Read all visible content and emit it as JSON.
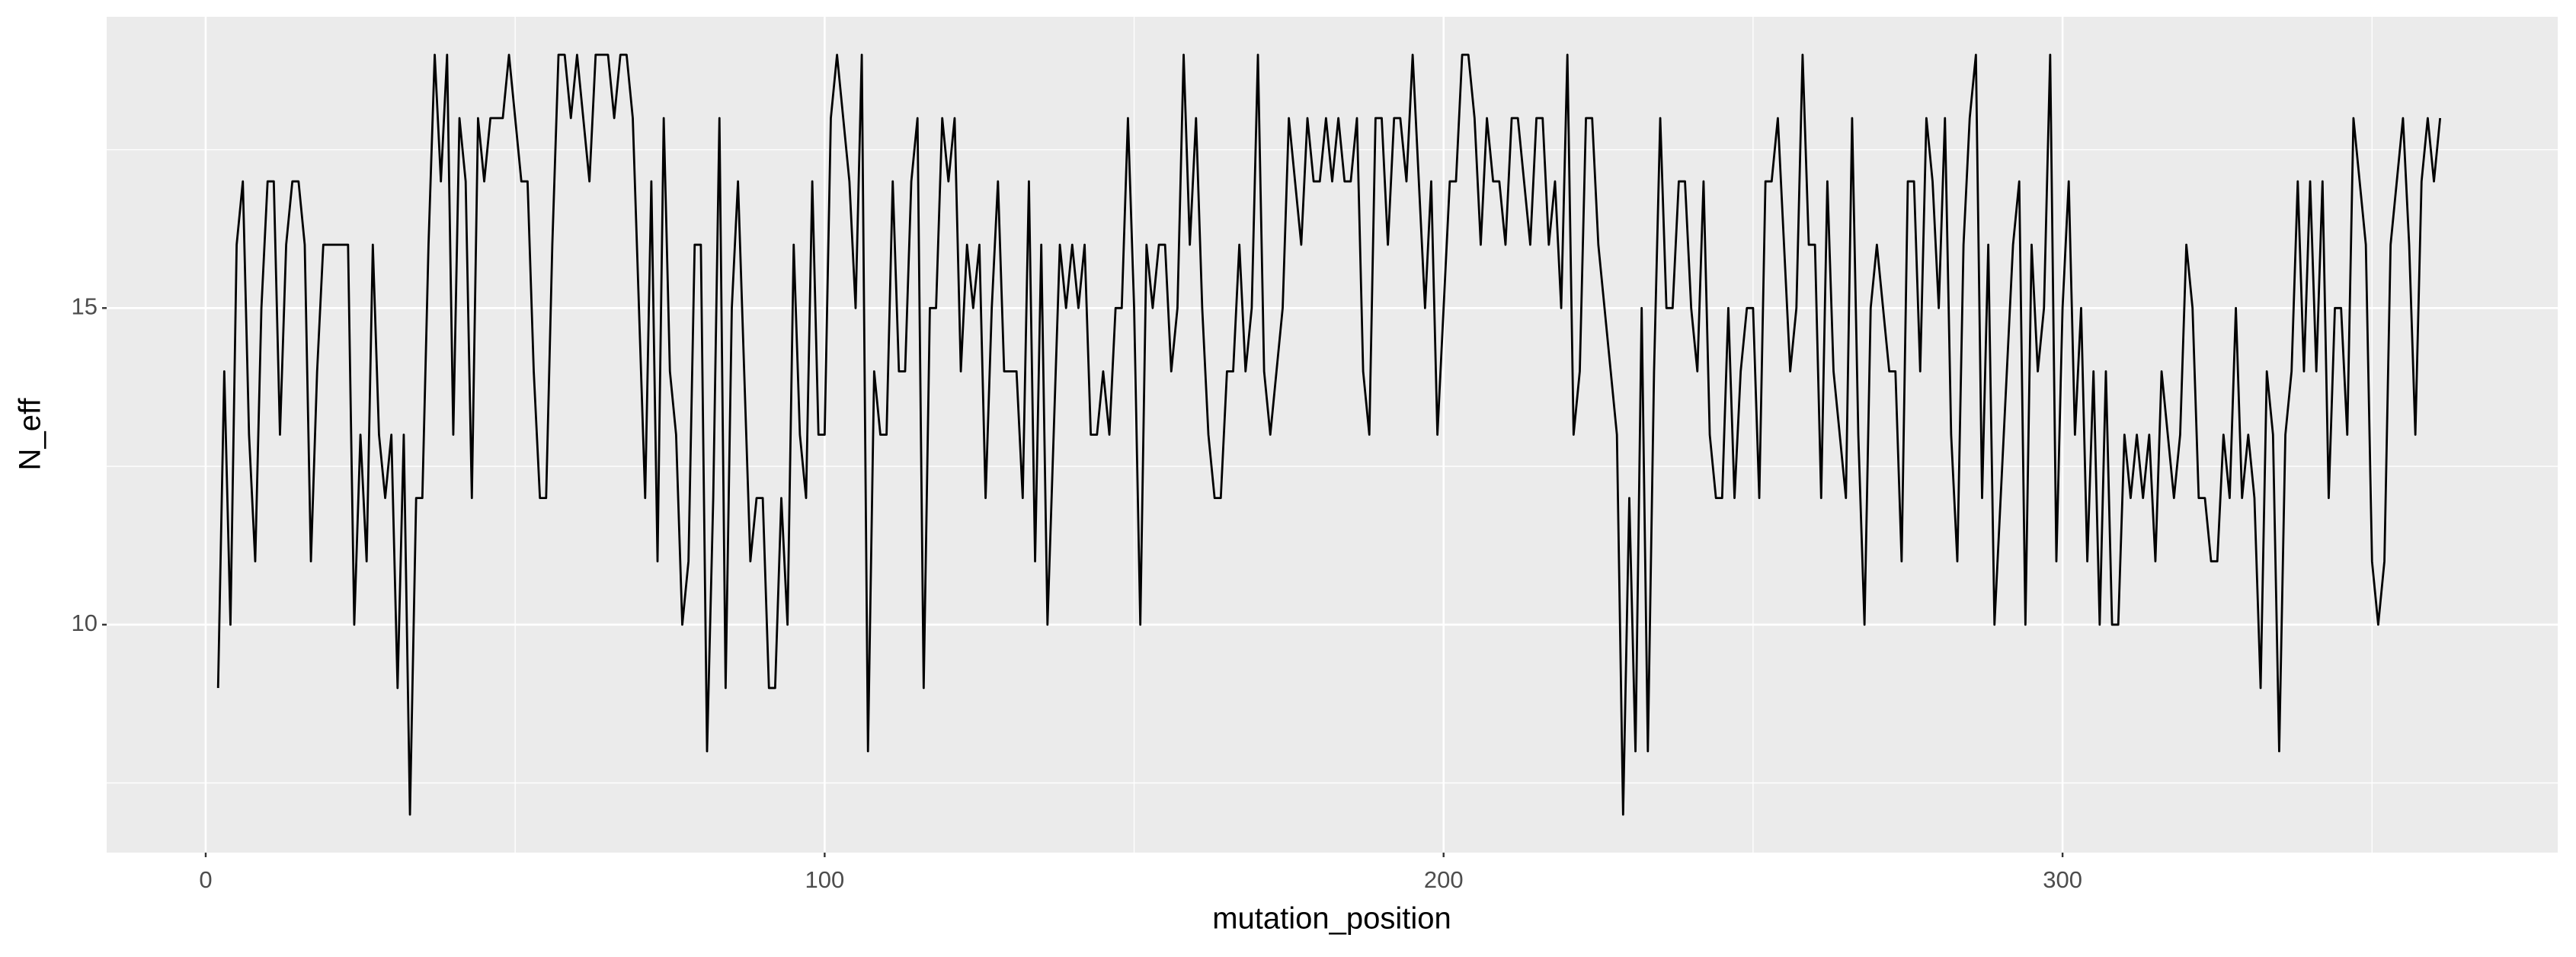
{
  "chart_data": {
    "type": "line",
    "x_label": "mutation_position",
    "y_label": "N_eff",
    "color": "#000000",
    "xlim": [
      -16,
      380
    ],
    "ylim": [
      6.4,
      19.6
    ],
    "xticks": [
      0,
      100,
      200,
      300
    ],
    "yticks": [
      10,
      15
    ],
    "x_minor_ticks": [
      50,
      150,
      250,
      350
    ],
    "y_minor_ticks": [
      7.5,
      12.5,
      17.5
    ],
    "grid": true,
    "panel_color": "#ebebeb",
    "x": [
      2,
      3,
      4,
      5,
      6,
      7,
      8,
      9,
      10,
      11,
      12,
      13,
      14,
      15,
      16,
      17,
      18,
      19,
      20,
      21,
      22,
      23,
      24,
      25,
      26,
      27,
      28,
      29,
      30,
      31,
      32,
      33,
      34,
      35,
      36,
      37,
      38,
      39,
      40,
      41,
      42,
      43,
      44,
      45,
      46,
      47,
      48,
      49,
      50,
      51,
      52,
      53,
      54,
      55,
      56,
      57,
      58,
      59,
      60,
      61,
      62,
      63,
      64,
      65,
      66,
      67,
      68,
      69,
      70,
      71,
      72,
      73,
      74,
      75,
      76,
      77,
      78,
      79,
      80,
      81,
      82,
      83,
      84,
      85,
      86,
      87,
      88,
      89,
      90,
      91,
      92,
      93,
      94,
      95,
      96,
      97,
      98,
      99,
      100,
      101,
      102,
      103,
      104,
      105,
      106,
      107,
      108,
      109,
      110,
      111,
      112,
      113,
      114,
      115,
      116,
      117,
      118,
      119,
      120,
      121,
      122,
      123,
      124,
      125,
      126,
      127,
      128,
      129,
      130,
      131,
      132,
      133,
      134,
      135,
      136,
      137,
      138,
      139,
      140,
      141,
      142,
      143,
      144,
      145,
      146,
      147,
      148,
      149,
      150,
      151,
      152,
      153,
      154,
      155,
      156,
      157,
      158,
      159,
      160,
      161,
      162,
      163,
      164,
      165,
      166,
      167,
      168,
      169,
      170,
      171,
      172,
      173,
      174,
      175,
      176,
      177,
      178,
      179,
      180,
      181,
      182,
      183,
      184,
      185,
      186,
      187,
      188,
      189,
      190,
      191,
      192,
      193,
      194,
      195,
      196,
      197,
      198,
      199,
      200,
      201,
      202,
      203,
      204,
      205,
      206,
      207,
      208,
      209,
      210,
      211,
      212,
      213,
      214,
      215,
      216,
      217,
      218,
      219,
      220,
      221,
      222,
      223,
      224,
      225,
      226,
      227,
      228,
      229,
      230,
      231,
      232,
      233,
      234,
      235,
      236,
      237,
      238,
      239,
      240,
      241,
      242,
      243,
      244,
      245,
      246,
      247,
      248,
      249,
      250,
      251,
      252,
      253,
      254,
      255,
      256,
      257,
      258,
      259,
      260,
      261,
      262,
      263,
      264,
      265,
      266,
      267,
      268,
      269,
      270,
      271,
      272,
      273,
      274,
      275,
      276,
      277,
      278,
      279,
      280,
      281,
      282,
      283,
      284,
      285,
      286,
      287,
      288,
      289,
      290,
      291,
      292,
      293,
      294,
      295,
      296,
      297,
      298,
      299,
      300,
      301,
      302,
      303,
      304,
      305,
      306,
      307,
      308,
      309,
      310,
      311,
      312,
      313,
      314,
      315,
      316,
      317,
      318,
      319,
      320,
      321,
      322,
      323,
      324,
      325,
      326,
      327,
      328,
      329,
      330,
      331,
      332,
      333,
      334,
      335,
      336,
      337,
      338,
      339,
      340,
      341,
      342,
      343,
      344,
      345,
      346,
      347,
      348,
      349,
      350,
      351,
      352,
      353,
      354,
      355,
      356,
      357,
      358,
      359,
      360,
      361
    ],
    "values": [
      9,
      14,
      10,
      16,
      17,
      13,
      11,
      15,
      17,
      17,
      13,
      16,
      17,
      17,
      16,
      11,
      14,
      16,
      16,
      16,
      16,
      16,
      10,
      13,
      11,
      16,
      13,
      12,
      13,
      9,
      13,
      7,
      12,
      12,
      16,
      19,
      17,
      19,
      13,
      18,
      17,
      12,
      18,
      17,
      18,
      18,
      18,
      19,
      18,
      17,
      17,
      14,
      12,
      12,
      16,
      19,
      19,
      18,
      19,
      18,
      17,
      19,
      19,
      19,
      18,
      19,
      19,
      18,
      15,
      12,
      17,
      11,
      18,
      14,
      13,
      10,
      11,
      16,
      16,
      8,
      12,
      18,
      9,
      15,
      17,
      14,
      11,
      12,
      12,
      9,
      9,
      12,
      10,
      16,
      13,
      12,
      17,
      13,
      13,
      18,
      19,
      18,
      17,
      15,
      19,
      8,
      14,
      13,
      13,
      17,
      14,
      14,
      17,
      18,
      9,
      15,
      15,
      18,
      17,
      18,
      14,
      16,
      15,
      16,
      12,
      15,
      17,
      14,
      14,
      14,
      12,
      17,
      11,
      16,
      10,
      13,
      16,
      15,
      16,
      15,
      16,
      13,
      13,
      14,
      13,
      15,
      15,
      18,
      15,
      10,
      16,
      15,
      16,
      16,
      14,
      15,
      19,
      16,
      18,
      15,
      13,
      12,
      12,
      14,
      14,
      16,
      14,
      15,
      19,
      14,
      13,
      14,
      15,
      18,
      17,
      16,
      18,
      17,
      17,
      18,
      17,
      18,
      17,
      17,
      18,
      14,
      13,
      18,
      18,
      16,
      18,
      18,
      17,
      19,
      17,
      15,
      17,
      13,
      15,
      17,
      17,
      19,
      19,
      18,
      16,
      18,
      17,
      17,
      16,
      18,
      18,
      17,
      16,
      18,
      18,
      16,
      17,
      15,
      19,
      13,
      14,
      18,
      18,
      16,
      15,
      14,
      13,
      7,
      12,
      8,
      15,
      8,
      14,
      18,
      15,
      15,
      17,
      17,
      15,
      14,
      17,
      13,
      12,
      12,
      15,
      12,
      14,
      15,
      15,
      12,
      17,
      17,
      18,
      16,
      14,
      15,
      19,
      16,
      16,
      12,
      17,
      14,
      13,
      12,
      18,
      13,
      10,
      15,
      16,
      15,
      14,
      14,
      11,
      17,
      17,
      14,
      18,
      17,
      15,
      18,
      13,
      11,
      16,
      18,
      19,
      12,
      16,
      10,
      12,
      14,
      16,
      17,
      10,
      16,
      14,
      15,
      19,
      11,
      15,
      17,
      13,
      15,
      11,
      14,
      10,
      14,
      10,
      10,
      13,
      12,
      13,
      12,
      13,
      11,
      14,
      13,
      12,
      13,
      16,
      15,
      12,
      12,
      11,
      11,
      13,
      12,
      15,
      12,
      13,
      12,
      9,
      14,
      13,
      8,
      13,
      14,
      17,
      14,
      17,
      14,
      17,
      12,
      15,
      15,
      13,
      18,
      17,
      16,
      11,
      10,
      11,
      16,
      17,
      18,
      16,
      13,
      17,
      18,
      17,
      18
    ]
  }
}
